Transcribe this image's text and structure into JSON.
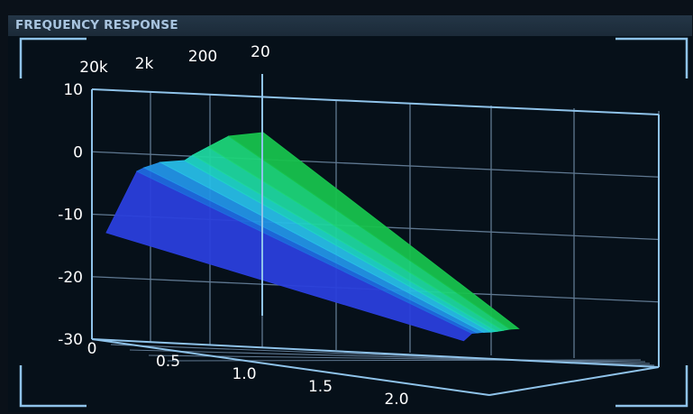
{
  "header": {
    "title": "FREQUENCY RESPONSE"
  },
  "colors": {
    "background": "#061019",
    "title_bar": "#1e2e3e",
    "title_text": "#a9c5e0",
    "frame": "#8fc3ea",
    "grid": "#5f7891",
    "series_colors": [
      "#2a3fdc",
      "#1f6ae0",
      "#2293e6",
      "#27bde6",
      "#1fd3c5",
      "#1ed69f",
      "#1cd478",
      "#17c24d"
    ]
  },
  "chart_data": {
    "type": "area",
    "title": "FREQUENCY RESPONSE",
    "x_axis": {
      "ticks": [
        "0",
        "0.5",
        "1.0",
        "1.5",
        "2.0"
      ]
    },
    "frequency_axis": {
      "ticks": [
        "20k",
        "2k",
        "200",
        "20"
      ]
    },
    "y_axis": {
      "ticks": [
        "10",
        "0",
        "-10",
        "-20",
        "-30"
      ],
      "range": [
        -30,
        10
      ]
    },
    "frequency_curve": {
      "frequency_hz": [
        20000,
        10000,
        5000,
        2000,
        1000,
        500,
        200,
        100,
        50,
        20
      ],
      "level_db": [
        -13,
        -4,
        0,
        2,
        3,
        3.5,
        4,
        3.5,
        3.5,
        3.5
      ]
    },
    "decay_end_x": 2.1,
    "grid": true,
    "legend": "none"
  }
}
